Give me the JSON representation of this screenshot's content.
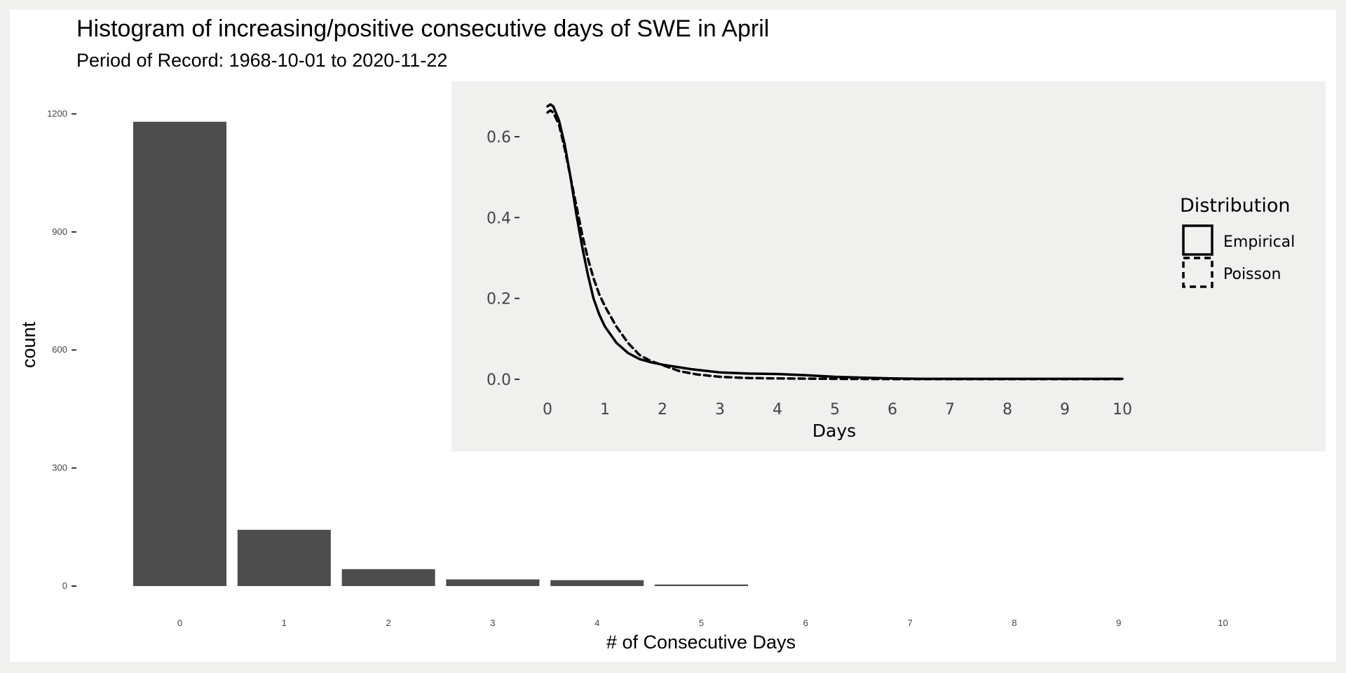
{
  "chart_data": [
    {
      "type": "bar",
      "title": "Histogram of increasing/positive consecutive days of  SWE in April",
      "subtitle": "Period of Record: 1968-10-01 to 2020-11-22",
      "xlabel": "# of Consecutive Days",
      "ylabel": "count",
      "categories": [
        "0",
        "1",
        "2",
        "3",
        "4",
        "5",
        "6",
        "7",
        "8",
        "9",
        "10"
      ],
      "values": [
        1180,
        143,
        43,
        17,
        15,
        4,
        0,
        0,
        0,
        0,
        0
      ],
      "y_ticks": [
        0,
        300,
        600,
        900,
        1200
      ],
      "ylim": [
        0,
        1240
      ],
      "bar_color": "#4d4d4d",
      "grid": false
    },
    {
      "type": "line",
      "xlabel": "Days",
      "ylabel": "",
      "xlim": [
        0,
        10
      ],
      "ylim": [
        -0.02,
        0.7
      ],
      "x_ticks": [
        0,
        1,
        2,
        3,
        4,
        5,
        6,
        7,
        8,
        9,
        10
      ],
      "y_ticks": [
        0.0,
        0.2,
        0.4,
        0.6
      ],
      "y_tick_labels": [
        "0.0",
        "0.2",
        "0.4",
        "0.6"
      ],
      "legend_title": "Distribution",
      "legend_position": "right",
      "series": [
        {
          "name": "Empirical",
          "line_style": "solid",
          "x": [
            0,
            0.05,
            0.1,
            0.2,
            0.3,
            0.4,
            0.5,
            0.6,
            0.7,
            0.8,
            0.9,
            1.0,
            1.2,
            1.4,
            1.6,
            1.8,
            2.0,
            2.5,
            3.0,
            3.5,
            4.0,
            4.5,
            5.0,
            5.5,
            6.0,
            6.5,
            7.0,
            8.0,
            9.0,
            10.0
          ],
          "y": [
            0.675,
            0.68,
            0.675,
            0.64,
            0.58,
            0.5,
            0.41,
            0.33,
            0.26,
            0.2,
            0.16,
            0.13,
            0.09,
            0.065,
            0.05,
            0.042,
            0.036,
            0.025,
            0.017,
            0.014,
            0.013,
            0.01,
            0.006,
            0.004,
            0.002,
            0.001,
            0.001,
            0.001,
            0.001,
            0.001
          ]
        },
        {
          "name": "Poisson",
          "line_style": "dashed",
          "x": [
            0,
            0.05,
            0.1,
            0.2,
            0.3,
            0.4,
            0.5,
            0.6,
            0.7,
            0.8,
            0.9,
            1.0,
            1.2,
            1.4,
            1.6,
            1.8,
            2.0,
            2.3,
            2.6,
            3.0,
            3.5,
            4.0,
            5.0,
            6.0,
            7.0,
            8.0,
            9.0,
            10.0
          ],
          "y": [
            0.66,
            0.665,
            0.66,
            0.63,
            0.57,
            0.5,
            0.43,
            0.36,
            0.3,
            0.25,
            0.21,
            0.18,
            0.13,
            0.09,
            0.06,
            0.045,
            0.035,
            0.02,
            0.012,
            0.006,
            0.003,
            0.002,
            0.001,
            0.0005,
            0.0005,
            0.0005,
            0.0005,
            0.0005
          ]
        }
      ]
    }
  ]
}
